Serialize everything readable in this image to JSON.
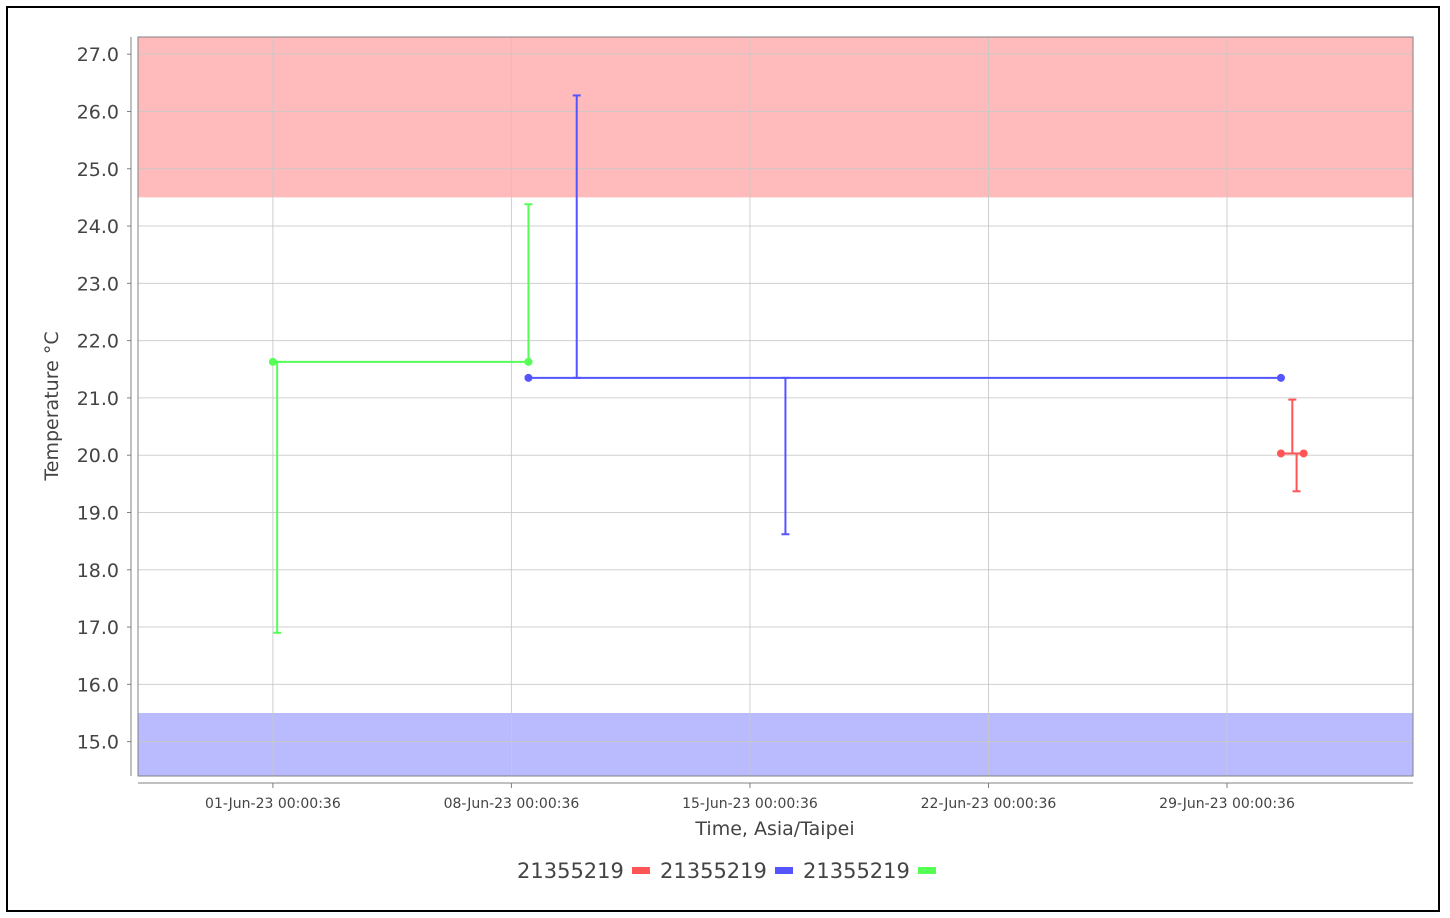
{
  "chart_data": {
    "type": "line",
    "xlabel": "Time, Asia/Taipei",
    "ylabel": "Temperature °C",
    "x_ticks": [
      "01-Jun-23 00:00:36",
      "08-Jun-23 00:00:36",
      "15-Jun-23 00:00:36",
      "22-Jun-23 00:00:36",
      "29-Jun-23 00:00:36"
    ],
    "y_ticks": [
      "15.0",
      "16.0",
      "17.0",
      "18.0",
      "19.0",
      "20.0",
      "21.0",
      "22.0",
      "23.0",
      "24.0",
      "25.0",
      "26.0",
      "27.0"
    ],
    "ylim": [
      14.4,
      27.3
    ],
    "xlim": [
      "28-May-23 01:00",
      "04-Jul-23 11:00"
    ],
    "grid": true,
    "legend_position": "bottom",
    "bands": [
      {
        "from": 24.5,
        "to": 27.3,
        "color": "#ffbbbb",
        "meaning": "above range"
      },
      {
        "from": 14.4,
        "to": 15.5,
        "color": "#babaff",
        "meaning": "below range"
      }
    ],
    "series": [
      {
        "name": "21355219",
        "color": "#ff5555",
        "points": [
          {
            "x": "30-Jun-23 14:00",
            "y": 20.03
          },
          {
            "x": "01-Jul-23 06:00",
            "y": 20.03
          }
        ],
        "range_bars": [
          {
            "x": "30-Jun-23 22:00",
            "low": 20.03,
            "high": 20.97
          },
          {
            "x": "01-Jul-23 01:00",
            "low": 19.37,
            "high": 20.03
          }
        ]
      },
      {
        "name": "21355219",
        "color": "#5555ff",
        "points": [
          {
            "x": "08-Jun-23 12:00",
            "y": 21.35
          },
          {
            "x": "30-Jun-23 14:00",
            "y": 21.35
          }
        ],
        "range_bars": [
          {
            "x": "09-Jun-23 22:00",
            "low": 21.35,
            "high": 26.28
          },
          {
            "x": "16-Jun-23 01:00",
            "low": 18.62,
            "high": 21.35
          }
        ]
      },
      {
        "name": "21355219",
        "color": "#55ff55",
        "points": [
          {
            "x": "01-Jun-23 00:00",
            "y": 21.63
          },
          {
            "x": "08-Jun-23 12:00",
            "y": 21.63
          }
        ],
        "range_bars": [
          {
            "x": "01-Jun-23 03:00",
            "low": 16.9,
            "high": 21.63
          },
          {
            "x": "08-Jun-23 12:00",
            "low": 21.63,
            "high": 24.38
          }
        ]
      }
    ]
  }
}
